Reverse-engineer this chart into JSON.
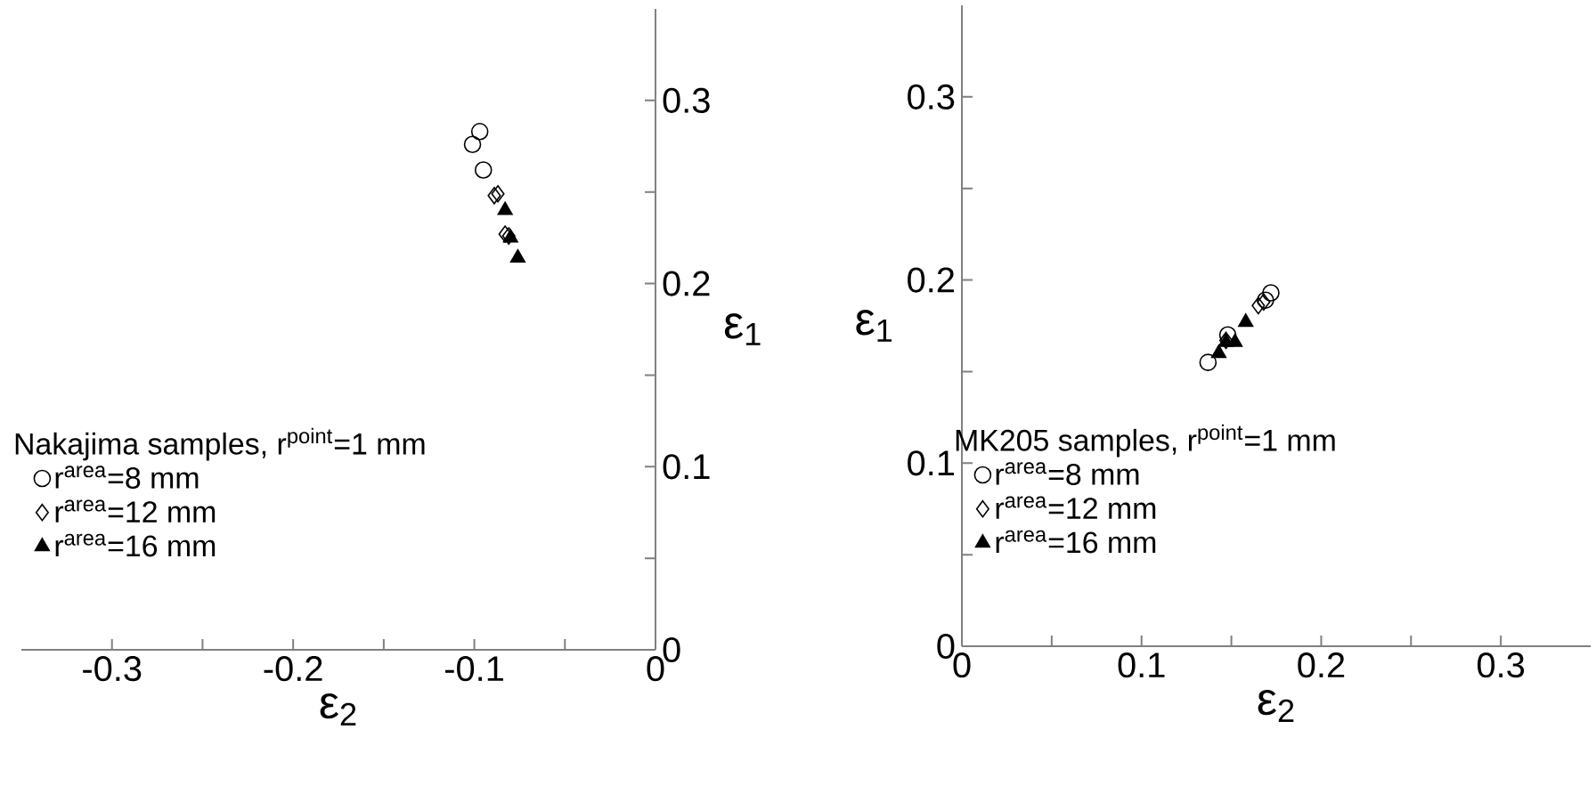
{
  "chart_data": [
    {
      "type": "scatter",
      "xlabel": "ε$_{2}$",
      "ylabel": "ε$_{1}$",
      "legend_title": "Nakajima samples, r$^{point}$=1 mm",
      "legend": "bottom left",
      "xlim": [
        -0.35,
        0
      ],
      "ylim": [
        0,
        0.35
      ],
      "xticks": [
        -0.3,
        {
          "value": -0.25,
          "label": null
        },
        -0.2,
        {
          "value": -0.15,
          "label": null
        },
        -0.1,
        {
          "value": -0.05,
          "label": null
        },
        0
      ],
      "yticks": [
        0,
        {
          "value": 0.05,
          "label": null
        },
        0.1,
        {
          "value": 0.15,
          "label": null
        },
        0.2,
        {
          "value": 0.25,
          "label": null
        },
        0.3
      ],
      "series": [
        {
          "name": "r$^{area}$=8 mm",
          "color": "#000000",
          "marker": "circle",
          "x": [
            -0.097,
            -0.101,
            -0.095
          ],
          "values": [
            0.283,
            0.276,
            0.262
          ]
        },
        {
          "name": "r$^{area}$=12 mm",
          "color": "#000000",
          "marker": "diamond",
          "x": [
            -0.089,
            -0.087,
            -0.083,
            -0.081
          ],
          "values": [
            0.248,
            0.249,
            0.227,
            0.226
          ]
        },
        {
          "name": "r$^{area}$=16 mm",
          "color": "#000000",
          "marker": "triangle",
          "x": [
            -0.083,
            -0.08,
            -0.076
          ],
          "values": [
            0.24,
            0.225,
            0.214
          ]
        }
      ]
    },
    {
      "type": "scatter",
      "xlabel": "ε$_{2}$",
      "ylabel": "ε$_{1}$",
      "legend_title": "MK205 samples, r$^{point}$=1 mm",
      "legend": "bottom left",
      "xlim": [
        0,
        0.35
      ],
      "ylim": [
        0,
        0.35
      ],
      "xticks": [
        0,
        {
          "value": 0.05,
          "label": null
        },
        0.1,
        {
          "value": 0.15,
          "label": null
        },
        0.2,
        {
          "value": 0.25,
          "label": null
        },
        0.3
      ],
      "yticks": [
        0,
        {
          "value": 0.05,
          "label": null
        },
        0.1,
        {
          "value": 0.15,
          "label": null
        },
        0.2,
        {
          "value": 0.25,
          "label": null
        },
        0.3
      ],
      "series": [
        {
          "name": "r$^{area}$=8 mm",
          "color": "#000000",
          "marker": "circle",
          "x": [
            0.137,
            0.148,
            0.172,
            0.169
          ],
          "values": [
            0.155,
            0.17,
            0.193,
            0.189
          ]
        },
        {
          "name": "r$^{area}$=12 mm",
          "color": "#000000",
          "marker": "diamond",
          "x": [
            0.165,
            0.168,
            0.147
          ],
          "values": [
            0.186,
            0.188,
            0.167
          ]
        },
        {
          "name": "r$^{area}$=16 mm",
          "color": "#000000",
          "marker": "triangle",
          "x": [
            0.143,
            0.152,
            0.158,
            0.147
          ],
          "values": [
            0.16,
            0.166,
            0.177,
            0.166
          ]
        }
      ]
    }
  ]
}
